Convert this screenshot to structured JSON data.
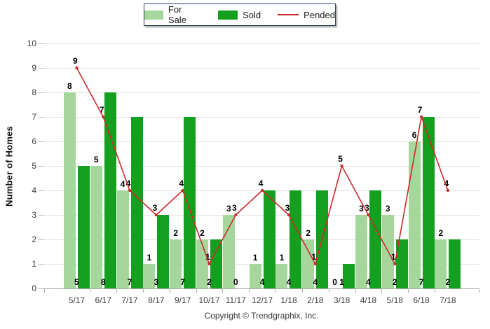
{
  "chart_data": {
    "type": "bar+line",
    "title": "",
    "categories": [
      "5/17",
      "6/17",
      "7/17",
      "8/17",
      "9/17",
      "10/17",
      "11/17",
      "12/17",
      "1/18",
      "2/18",
      "3/18",
      "4/18",
      "5/18",
      "6/18",
      "7/18"
    ],
    "series": [
      {
        "name": "For Sale",
        "type": "bar",
        "color": "#a5d79d",
        "label_position": "above",
        "values": [
          8,
          5,
          4,
          1,
          2,
          2,
          3,
          1,
          1,
          2,
          0,
          3,
          3,
          6,
          2
        ]
      },
      {
        "name": "Sold",
        "type": "bar",
        "color": "#14a01e",
        "label_position": "base",
        "values": [
          5,
          8,
          7,
          3,
          7,
          2,
          0,
          4,
          4,
          4,
          1,
          4,
          2,
          7,
          2
        ]
      },
      {
        "name": "Pended",
        "type": "line",
        "color": "#cc2a2a",
        "values": [
          9,
          7,
          4,
          3,
          4,
          1,
          3,
          4,
          3,
          1,
          5,
          3,
          1,
          7,
          4
        ]
      }
    ],
    "xlabel": "",
    "ylabel": "Number of Homes",
    "ylim": [
      0,
      10
    ],
    "ytick_step": 1,
    "grid": "horizontal",
    "legend_position": "top-center",
    "data_labels": true
  },
  "footer": {
    "copyright": "Copyright © Trendgraphix, Inc."
  }
}
